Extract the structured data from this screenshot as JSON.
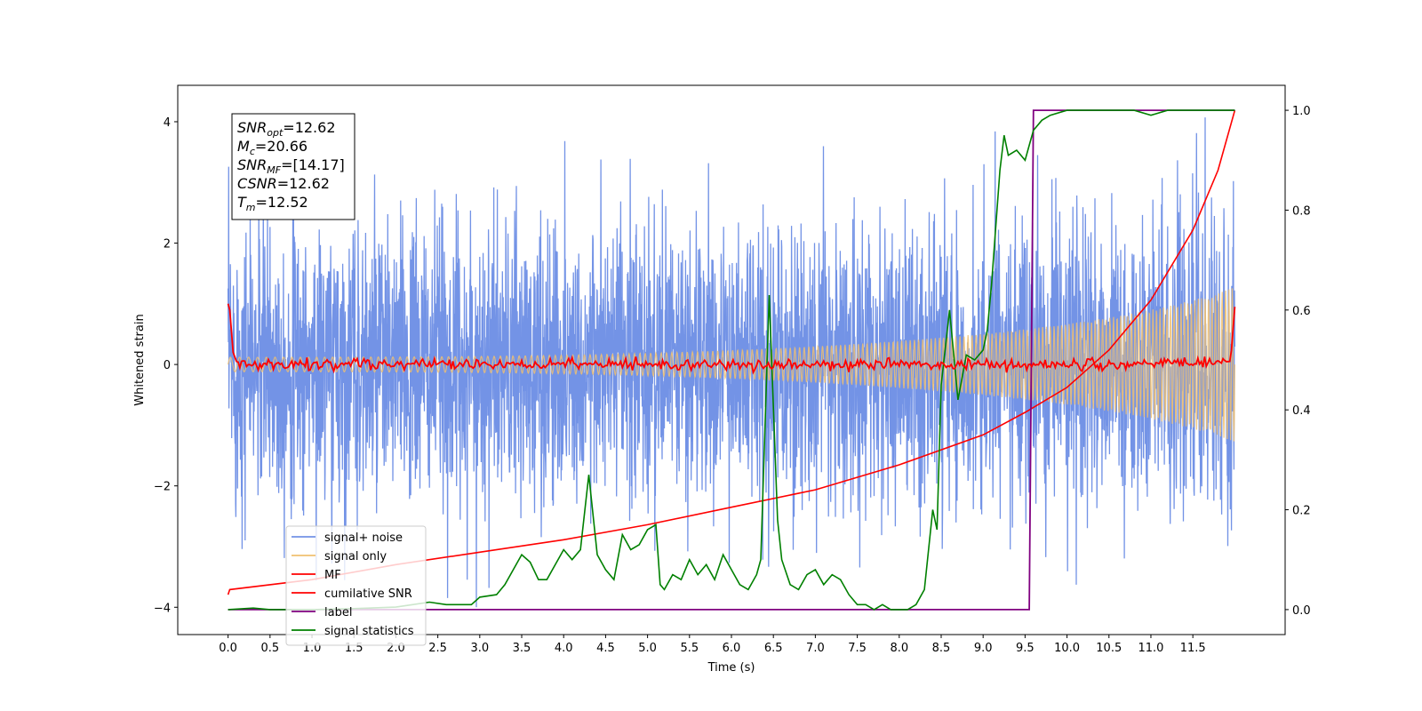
{
  "chart_data": {
    "type": "line",
    "xlabel": "Time (s)",
    "ylabel": "Whitened strain",
    "xlim": [
      -0.6,
      12.6
    ],
    "ylim_left": [
      -4.45,
      4.6
    ],
    "ylim_right": [
      -0.05,
      1.05
    ],
    "x_ticks": [
      "0.0",
      "0.5",
      "1.0",
      "1.5",
      "2.0",
      "2.5",
      "3.0",
      "3.5",
      "4.0",
      "4.5",
      "5.0",
      "5.5",
      "6.0",
      "6.5",
      "7.0",
      "7.5",
      "8.0",
      "8.5",
      "9.0",
      "9.5",
      "10.0",
      "10.5",
      "11.0",
      "11.5"
    ],
    "y_ticks_left": [
      "4",
      "2",
      "0",
      "−2",
      "−4"
    ],
    "y_ticks_right": [
      "1.0",
      "0.8",
      "0.6",
      "0.4",
      "0.2",
      "0.0"
    ],
    "annotation": {
      "snr_opt": "=12.62",
      "mc": "=20.66",
      "snr_mf": "=[14.17]",
      "csnr": "=12.62",
      "tm": "=12.52"
    },
    "series": [
      {
        "name": "signal+ noise",
        "color": "#7393e6",
        "axis": "left",
        "description": "whitened noise, std approx 1.1, x from 0 to 12"
      },
      {
        "name": "signal only",
        "color": "#f0c070",
        "axis": "left",
        "description": "chirp oscillation, amplitude rising from 0.15 to 1.2"
      },
      {
        "name": "MF",
        "color": "#ff0000",
        "axis": "left",
        "x": [
          0.0,
          0.02,
          0.06,
          0.1,
          0.2,
          0.5,
          1.0,
          1.5,
          2.0,
          3.0,
          4.0,
          5.0,
          6.0,
          7.0,
          8.0,
          9.0,
          10.0,
          11.0,
          11.95,
          11.98,
          12.0
        ],
        "y": [
          1.0,
          0.9,
          0.2,
          0.05,
          0.0,
          0.0,
          0.0,
          0.0,
          0.0,
          0.0,
          0.0,
          0.0,
          0.0,
          0.0,
          0.0,
          0.0,
          0.0,
          0.0,
          0.05,
          0.6,
          0.95
        ]
      },
      {
        "name": "cumilative SNR",
        "color": "#ff0000",
        "axis": "right",
        "x": [
          0.0,
          0.02,
          1.0,
          2.0,
          3.0,
          4.0,
          5.0,
          6.0,
          7.0,
          8.0,
          9.0,
          9.5,
          10.0,
          10.5,
          11.0,
          11.5,
          11.8,
          12.0
        ],
        "y": [
          0.03,
          0.04,
          0.06,
          0.09,
          0.115,
          0.14,
          0.17,
          0.205,
          0.24,
          0.29,
          0.35,
          0.395,
          0.445,
          0.52,
          0.62,
          0.76,
          0.88,
          1.0
        ]
      },
      {
        "name": "label",
        "color": "#800080",
        "axis": "right",
        "x": [
          0.0,
          9.55,
          9.6,
          12.0
        ],
        "y": [
          0.0,
          0.0,
          1.0,
          1.0
        ]
      },
      {
        "name": "signal statistics",
        "color": "#008000",
        "axis": "right",
        "x": [
          0.0,
          0.3,
          0.5,
          1.0,
          1.5,
          2.0,
          2.2,
          2.4,
          2.6,
          2.9,
          3.0,
          3.2,
          3.3,
          3.5,
          3.6,
          3.7,
          3.8,
          4.0,
          4.1,
          4.2,
          4.3,
          4.4,
          4.5,
          4.6,
          4.7,
          4.8,
          4.9,
          5.0,
          5.1,
          5.15,
          5.2,
          5.3,
          5.4,
          5.5,
          5.6,
          5.7,
          5.8,
          5.9,
          6.0,
          6.1,
          6.2,
          6.3,
          6.35,
          6.45,
          6.55,
          6.6,
          6.7,
          6.8,
          6.9,
          7.0,
          7.1,
          7.2,
          7.3,
          7.4,
          7.5,
          7.6,
          7.7,
          7.8,
          7.9,
          8.0,
          8.1,
          8.2,
          8.3,
          8.4,
          8.45,
          8.5,
          8.6,
          8.7,
          8.8,
          8.9,
          9.0,
          9.05,
          9.1,
          9.2,
          9.25,
          9.3,
          9.4,
          9.5,
          9.55,
          9.6,
          9.7,
          9.8,
          10.0,
          10.5,
          10.8,
          11.0,
          11.2,
          11.5,
          12.0
        ],
        "y": [
          0.0,
          0.003,
          0.0,
          0.0,
          0.002,
          0.005,
          0.01,
          0.015,
          0.01,
          0.01,
          0.025,
          0.03,
          0.05,
          0.11,
          0.095,
          0.06,
          0.06,
          0.12,
          0.1,
          0.12,
          0.27,
          0.11,
          0.08,
          0.06,
          0.15,
          0.12,
          0.13,
          0.16,
          0.17,
          0.05,
          0.04,
          0.07,
          0.06,
          0.1,
          0.07,
          0.09,
          0.06,
          0.11,
          0.08,
          0.05,
          0.04,
          0.07,
          0.1,
          0.63,
          0.18,
          0.1,
          0.05,
          0.04,
          0.07,
          0.08,
          0.05,
          0.07,
          0.06,
          0.03,
          0.01,
          0.01,
          0.0,
          0.01,
          0.0,
          0.0,
          0.0,
          0.01,
          0.04,
          0.2,
          0.16,
          0.45,
          0.6,
          0.42,
          0.51,
          0.5,
          0.52,
          0.56,
          0.65,
          0.88,
          0.95,
          0.91,
          0.92,
          0.9,
          0.93,
          0.96,
          0.98,
          0.99,
          1.0,
          1.0,
          1.0,
          0.99,
          1.0,
          1.0,
          1.0
        ]
      }
    ],
    "legend": {
      "placement": "lower-left"
    }
  }
}
